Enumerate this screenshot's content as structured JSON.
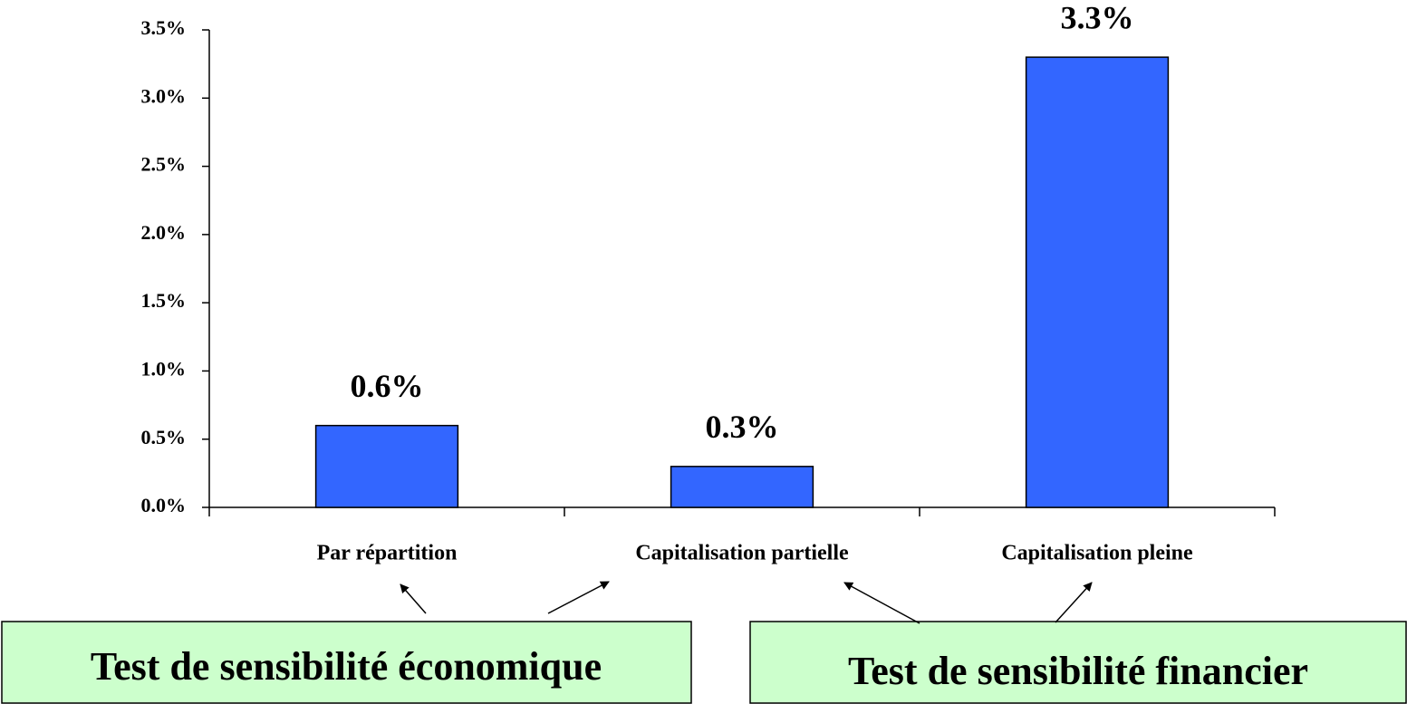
{
  "chart_data": {
    "type": "bar",
    "categories": [
      "Par répartition",
      "Capitalisation partielle",
      "Capitalisation pleine"
    ],
    "values": [
      0.6,
      0.3,
      3.3
    ],
    "value_labels": [
      "0.6%",
      "0.3%",
      "3.3%"
    ],
    "color": "#3366ff",
    "ylim": [
      0,
      3.5
    ],
    "yticks": [
      {
        "value": 0,
        "label": "0.0%"
      },
      {
        "value": 0.5,
        "label": "0.5%"
      },
      {
        "value": 1,
        "label": "1.0%"
      },
      {
        "value": 1.5,
        "label": "1.5%"
      },
      {
        "value": 2,
        "label": "2.0%"
      },
      {
        "value": 2.5,
        "label": "2.5%"
      },
      {
        "value": 3,
        "label": "3.0%"
      },
      {
        "value": 3.5,
        "label": "3.5%"
      }
    ],
    "grid": false,
    "annotations": [
      "Test de sensibilité économique",
      "Test de sensibilité financier"
    ]
  }
}
